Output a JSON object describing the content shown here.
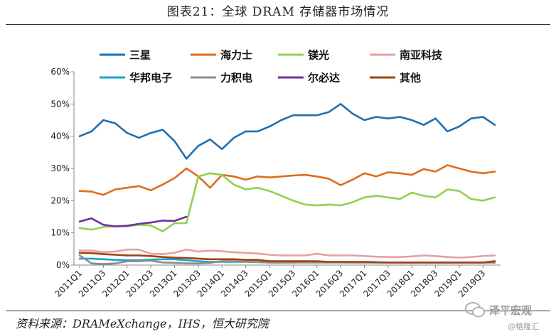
{
  "header": {
    "title": "图表21：全球 DRAM 存储器市场情况"
  },
  "footer": {
    "source": "资料来源：DRAMeXchange，IHS，恒大研究院"
  },
  "watermark": {
    "brand": "泽平宏观",
    "sub": "@格隆汇",
    "icon": "wechat-icon"
  },
  "chart_data": {
    "type": "line",
    "title": "全球 DRAM 存储器市场情况",
    "xlabel": "",
    "ylabel": "",
    "ylim": [
      0,
      0.6
    ],
    "yticks": [
      0,
      0.1,
      0.2,
      0.3,
      0.4,
      0.5,
      0.6
    ],
    "ytick_labels": [
      "0%",
      "10%",
      "20%",
      "30%",
      "40%",
      "50%",
      "60%"
    ],
    "grid": false,
    "legend_position": "top",
    "categories": [
      "2011Q1",
      "2011Q2",
      "2011Q3",
      "2011Q4",
      "2012Q1",
      "2012Q2",
      "2012Q3",
      "2012Q4",
      "2013Q1",
      "2013Q2",
      "2013Q3",
      "2013Q4",
      "2014Q1",
      "2014Q2",
      "2014Q3",
      "2014Q4",
      "2015Q1",
      "2015Q2",
      "2015Q3",
      "2015Q4",
      "2016Q1",
      "2016Q2",
      "2016Q3",
      "2016Q4",
      "2017Q1",
      "2017Q2",
      "2017Q3",
      "2017Q4",
      "2018Q1",
      "2018Q2",
      "2018Q3",
      "2018Q4",
      "2019Q1",
      "2019Q2",
      "2019Q3",
      "2019Q4"
    ],
    "tick_labels": [
      "2011Q1",
      "2011Q3",
      "2012Q1",
      "2012Q3",
      "2013Q1",
      "2013Q3",
      "2014Q1",
      "2014Q3",
      "2015Q1",
      "2015Q3",
      "2016Q1",
      "2016Q3",
      "2017Q1",
      "2017Q3",
      "2018Q1",
      "2018Q3",
      "2019Q1",
      "2019Q3"
    ],
    "series": [
      {
        "name": "三星",
        "color": "#1f6fb2",
        "values": [
          0.4,
          0.415,
          0.45,
          0.44,
          0.41,
          0.395,
          0.41,
          0.42,
          0.385,
          0.33,
          0.37,
          0.39,
          0.36,
          0.395,
          0.415,
          0.415,
          0.43,
          0.45,
          0.465,
          0.465,
          0.465,
          0.475,
          0.5,
          0.47,
          0.45,
          0.46,
          0.455,
          0.46,
          0.45,
          0.435,
          0.455,
          0.415,
          0.43,
          0.455,
          0.46,
          0.435
        ]
      },
      {
        "name": "海力士",
        "color": "#e06b1c",
        "values": [
          0.23,
          0.228,
          0.218,
          0.235,
          0.24,
          0.245,
          0.232,
          0.25,
          0.27,
          0.3,
          0.275,
          0.24,
          0.28,
          0.275,
          0.265,
          0.275,
          0.272,
          0.275,
          0.278,
          0.28,
          0.275,
          0.268,
          0.248,
          0.265,
          0.285,
          0.275,
          0.288,
          0.285,
          0.28,
          0.298,
          0.29,
          0.31,
          0.3,
          0.29,
          0.285,
          0.29
        ]
      },
      {
        "name": "镁光",
        "color": "#92d050",
        "values": [
          0.115,
          0.11,
          0.118,
          0.12,
          0.12,
          0.125,
          0.123,
          0.105,
          0.13,
          0.13,
          0.275,
          0.285,
          0.28,
          0.25,
          0.235,
          0.24,
          0.23,
          0.215,
          0.2,
          0.188,
          0.185,
          0.188,
          0.185,
          0.195,
          0.21,
          0.215,
          0.21,
          0.205,
          0.225,
          0.215,
          0.21,
          0.235,
          0.23,
          0.205,
          0.2,
          0.21
        ]
      },
      {
        "name": "南亚科技",
        "color": "#e8a0a0",
        "values": [
          0.045,
          0.045,
          0.04,
          0.042,
          0.048,
          0.048,
          0.035,
          0.034,
          0.038,
          0.048,
          0.042,
          0.045,
          0.043,
          0.04,
          0.038,
          0.036,
          0.032,
          0.03,
          0.03,
          0.03,
          0.035,
          0.03,
          0.03,
          0.03,
          0.028,
          0.026,
          0.025,
          0.025,
          0.027,
          0.03,
          0.028,
          0.025,
          0.023,
          0.025,
          0.028,
          0.03
        ]
      },
      {
        "name": "华邦电子",
        "color": "#19a3d9",
        "values": [
          0.02,
          0.02,
          0.018,
          0.016,
          0.015,
          0.015,
          0.017,
          0.018,
          0.018,
          0.015,
          0.012,
          0.01,
          0.01,
          0.01,
          0.01,
          0.009,
          0.008,
          0.008,
          0.008,
          0.009,
          0.009,
          0.009,
          0.009,
          0.008,
          0.008,
          0.008,
          0.008,
          0.008,
          0.008,
          0.008,
          0.008,
          0.008,
          0.008,
          0.008,
          0.008,
          0.008
        ]
      },
      {
        "name": "力积电",
        "color": "#8c8c8c",
        "values": [
          0.03,
          0.005,
          0.003,
          0.005,
          0.012,
          0.012,
          0.014,
          0.008,
          0.007,
          0.005,
          0.005,
          0.007,
          0.012,
          0.012,
          0.01,
          0.01,
          0.008,
          0.008,
          0.008,
          0.008,
          0.008,
          0.008,
          0.008,
          0.008,
          0.008,
          0.008,
          0.008,
          0.008,
          0.008,
          0.008,
          0.008,
          0.008,
          0.008,
          0.008,
          0.008,
          0.008
        ]
      },
      {
        "name": "尔必达",
        "color": "#7030a0",
        "values": [
          0.135,
          0.145,
          0.125,
          0.12,
          0.122,
          0.128,
          0.132,
          0.138,
          0.137,
          0.15,
          null,
          null,
          null,
          null,
          null,
          null,
          null,
          null,
          null,
          null,
          null,
          null,
          null,
          null,
          null,
          null,
          null,
          null,
          null,
          null,
          null,
          null,
          null,
          null,
          null,
          null
        ]
      },
      {
        "name": "其他",
        "color": "#a0420a",
        "values": [
          0.038,
          0.037,
          0.034,
          0.032,
          0.03,
          0.03,
          0.028,
          0.025,
          0.023,
          0.022,
          0.02,
          0.018,
          0.018,
          0.018,
          0.016,
          0.016,
          0.012,
          0.012,
          0.012,
          0.012,
          0.012,
          0.01,
          0.01,
          0.01,
          0.01,
          0.009,
          0.008,
          0.008,
          0.008,
          0.008,
          0.008,
          0.008,
          0.008,
          0.008,
          0.008,
          0.012
        ]
      }
    ]
  }
}
